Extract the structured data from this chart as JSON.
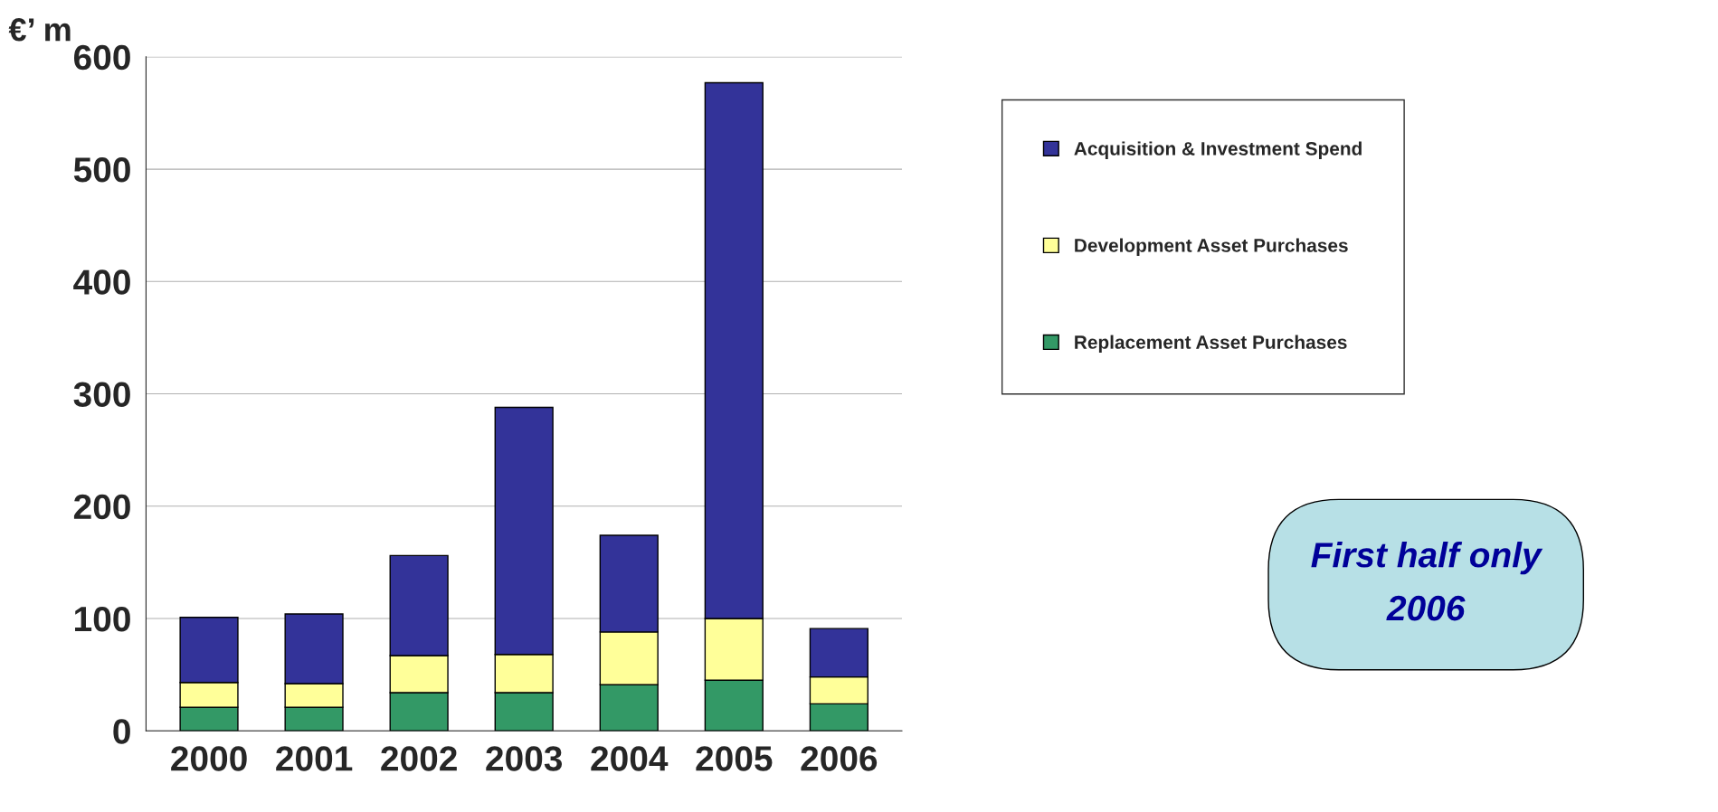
{
  "chart_data": {
    "type": "bar",
    "stacked": true,
    "ylabel": "€’ m",
    "categories": [
      "2000",
      "2001",
      "2002",
      "2003",
      "2004",
      "2005",
      "2006"
    ],
    "series": [
      {
        "name": "Replacement Asset Purchases",
        "color": "#339966",
        "values": [
          21,
          21,
          34,
          34,
          41,
          45,
          24
        ]
      },
      {
        "name": "Development Asset Purchases",
        "color": "#ffff99",
        "values": [
          22,
          21,
          33,
          34,
          47,
          55,
          24
        ]
      },
      {
        "name": "Acquisition & Investment Spend",
        "color": "#333399",
        "values": [
          58,
          62,
          89,
          220,
          86,
          477,
          43
        ]
      }
    ],
    "ylim": [
      0,
      600
    ],
    "yticks": [
      0,
      100,
      200,
      300,
      400,
      500,
      600
    ],
    "grid": "y",
    "legend": "right",
    "annotations": [
      "First half only\n2006"
    ]
  }
}
